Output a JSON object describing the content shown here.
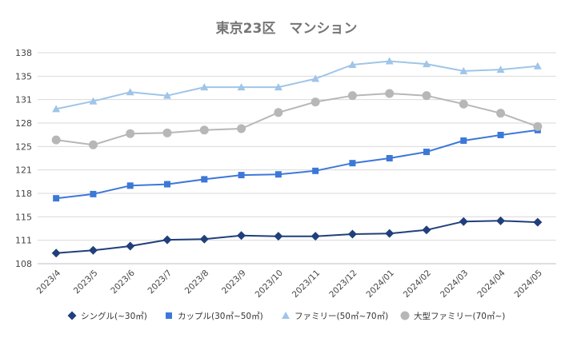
{
  "chart_data": {
    "type": "line",
    "title": "東京23区　マンション",
    "xlabel": "",
    "ylabel": "",
    "categories": [
      "2023/4",
      "2023/5",
      "2023/6",
      "2023/7",
      "2023/8",
      "2023/9",
      "2023/10",
      "2023/11",
      "2023/12",
      "2024/01",
      "2024/02",
      "2024/03",
      "2024/04",
      "2024/05"
    ],
    "ylim": [
      108,
      138
    ],
    "ytick_labels": [
      "108",
      "111",
      "115",
      "118",
      "121",
      "125",
      "128",
      "131",
      "135",
      "138"
    ],
    "grid": true,
    "legend_position": "bottom",
    "series": [
      {
        "name": "シングル(~30㎡)",
        "marker": "diamond",
        "color": "#203f7b",
        "values": [
          109.5,
          109.9,
          110.5,
          111.4,
          111.5,
          112.0,
          111.9,
          111.9,
          112.2,
          112.3,
          112.8,
          114.0,
          114.1,
          113.9
        ]
      },
      {
        "name": "カップル(30㎡~50㎡)",
        "marker": "square",
        "color": "#3c78d8",
        "values": [
          117.3,
          117.9,
          119.1,
          119.3,
          120.0,
          120.6,
          120.7,
          121.2,
          122.3,
          123.0,
          123.9,
          125.5,
          126.3,
          127.0
        ]
      },
      {
        "name": "ファミリー(50㎡~70㎡)",
        "marker": "triangle",
        "color": "#9fc5e8",
        "values": [
          130.0,
          131.1,
          132.4,
          131.9,
          133.1,
          133.1,
          133.1,
          134.3,
          136.3,
          136.8,
          136.4,
          135.4,
          135.6,
          136.1
        ]
      },
      {
        "name": "大型ファミリー(70㎡~)",
        "marker": "circle",
        "color": "#b7b7b7",
        "values": [
          125.6,
          124.9,
          126.5,
          126.6,
          127.0,
          127.2,
          129.5,
          131.0,
          131.9,
          132.2,
          131.9,
          130.7,
          129.4,
          127.5
        ]
      }
    ]
  }
}
